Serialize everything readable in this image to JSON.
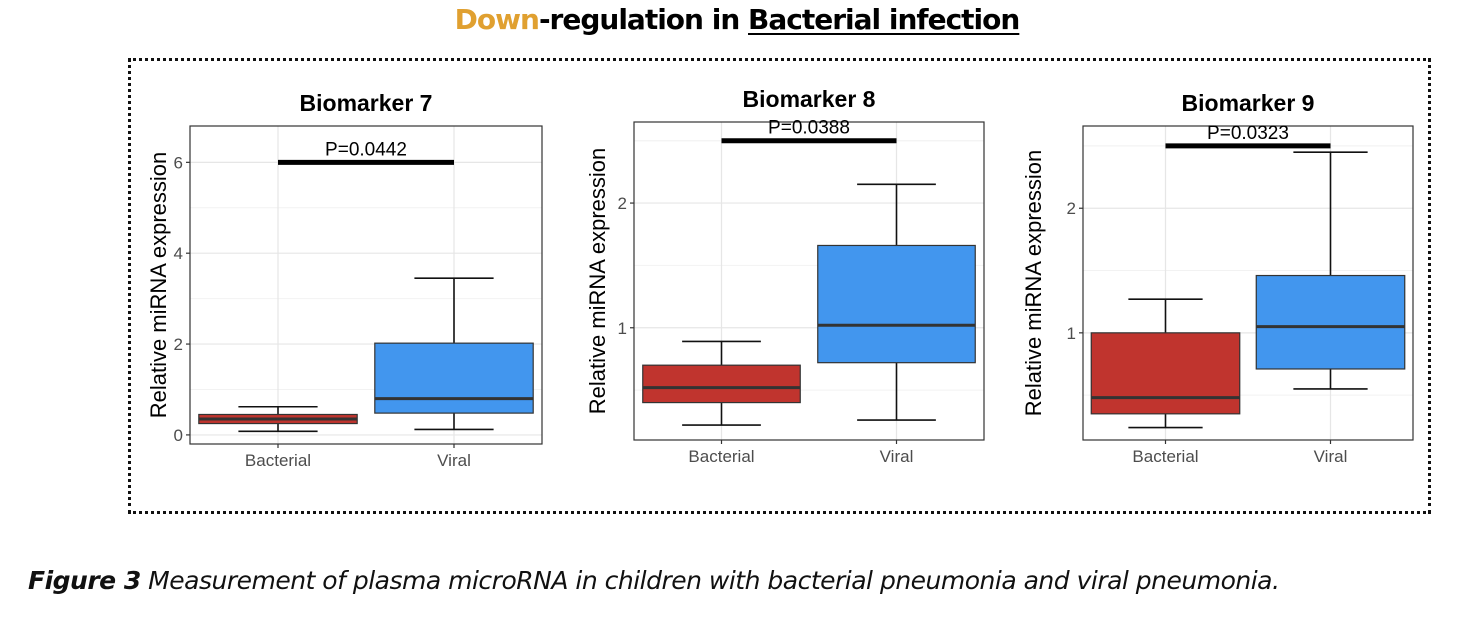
{
  "headline": {
    "accent_word": "Down",
    "middle_text": "-regulation in ",
    "underlined_text": "Bacterial infection"
  },
  "caption": {
    "label": "Figure 3",
    "text": " Measurement of plasma microRNA in children with bacterial pneumonia and viral pneumonia."
  },
  "colors": {
    "accent": "#E0A030",
    "bacterial": "#C0342E",
    "viral": "#4296EE"
  },
  "chart_data": [
    {
      "type": "box",
      "title": "Biomarker 7",
      "ylabel": "Relative miRNA expression",
      "categories": [
        "Bacterial",
        "Viral"
      ],
      "ylim": [
        -0.2,
        6.8
      ],
      "yticks": [
        0,
        2,
        4,
        6
      ],
      "grid": true,
      "boxes": [
        {
          "category": "Bacterial",
          "min": 0.08,
          "q1": 0.25,
          "median": 0.35,
          "q3": 0.45,
          "max": 0.62,
          "color": "#C0342E"
        },
        {
          "category": "Viral",
          "min": 0.12,
          "q1": 0.48,
          "median": 0.8,
          "q3": 2.02,
          "max": 3.45,
          "color": "#4296EE"
        }
      ],
      "annotation": {
        "text": "P=0.0442",
        "y": 6.0
      }
    },
    {
      "type": "box",
      "title": "Biomarker 8",
      "ylabel": "Relative miRNA expression",
      "categories": [
        "Bacterial",
        "Viral"
      ],
      "ylim": [
        0.1,
        2.65
      ],
      "yticks": [
        1,
        2
      ],
      "grid": true,
      "boxes": [
        {
          "category": "Bacterial",
          "min": 0.22,
          "q1": 0.4,
          "median": 0.52,
          "q3": 0.7,
          "max": 0.89,
          "color": "#C0342E"
        },
        {
          "category": "Viral",
          "min": 0.26,
          "q1": 0.72,
          "median": 1.02,
          "q3": 1.66,
          "max": 2.15,
          "color": "#4296EE"
        }
      ],
      "annotation": {
        "text": "P=0.0388",
        "y": 2.5
      }
    },
    {
      "type": "box",
      "title": "Biomarker 9",
      "ylabel": "Relative miRNA expression",
      "categories": [
        "Bacterial",
        "Viral"
      ],
      "ylim": [
        0.14,
        2.66
      ],
      "yticks": [
        1,
        2
      ],
      "grid": true,
      "boxes": [
        {
          "category": "Bacterial",
          "min": 0.24,
          "q1": 0.35,
          "median": 0.48,
          "q3": 1.0,
          "max": 1.27,
          "color": "#C0342E"
        },
        {
          "category": "Viral",
          "min": 0.55,
          "q1": 0.71,
          "median": 1.05,
          "q3": 1.46,
          "max": 2.45,
          "color": "#4296EE"
        }
      ],
      "annotation": {
        "text": "P=0.0323",
        "y": 2.5
      }
    }
  ]
}
